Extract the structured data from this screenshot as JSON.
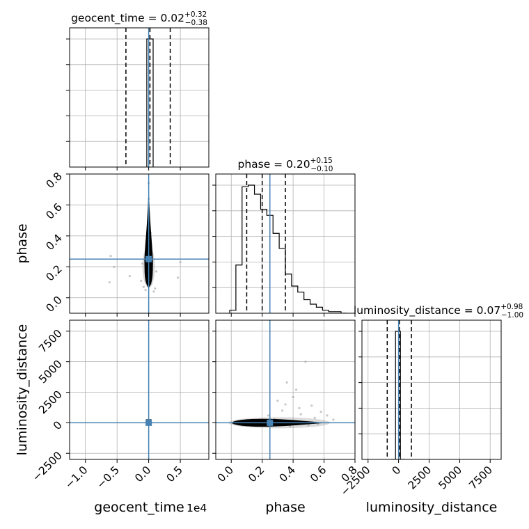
{
  "colors": {
    "truth": "#4682b4",
    "grid": "#b0b0b0",
    "hist": "#000000",
    "scatter": "#999999",
    "density": "#000000"
  },
  "chart_data": {
    "type": "corner",
    "parameters": [
      "geocent_time",
      "phase",
      "luminosity_distance"
    ],
    "grid": true,
    "titles": [
      {
        "text": "geocent_time = 0.02",
        "sup": "+0.32",
        "sub": "−0.38"
      },
      {
        "text": "phase = 0.20",
        "sup": "+0.15",
        "sub": "−0.10"
      },
      {
        "text": "luminosity_distance = 0.07",
        "sup": "+0.98",
        "sub": "−1.00"
      }
    ],
    "axis_labels": {
      "x": [
        "geocent_time",
        "phase",
        "luminosity_distance"
      ],
      "y": [
        "phase",
        "luminosity_distance"
      ]
    },
    "x_offset_text": "1e4",
    "ranges": {
      "geocent_time": [
        -1.25,
        0.95
      ],
      "phase": [
        -0.1,
        0.8
      ],
      "luminosity_distance": [
        -3000,
        8400
      ]
    },
    "ticks": {
      "geocent_time": {
        "values": [
          -1.0,
          -0.5,
          0.0,
          0.5
        ],
        "labels": [
          "−1.0",
          "−0.5",
          "0.0",
          "0.5"
        ]
      },
      "phase": {
        "values": [
          0.0,
          0.2,
          0.4,
          0.6,
          0.8
        ],
        "labels": [
          "0.0",
          "0.2",
          "0.4",
          "0.6",
          "0.8"
        ]
      },
      "luminosity_distance": {
        "values": [
          -2500,
          0,
          2500,
          5000,
          7500
        ],
        "labels": [
          "−2500",
          "0",
          "2500",
          "5000",
          "7500"
        ]
      }
    },
    "truths": {
      "geocent_time": 0.0,
      "phase": 0.25,
      "luminosity_distance": 0.0
    },
    "quantiles": {
      "geocent_time": [
        -0.36,
        0.02,
        0.34
      ],
      "phase": [
        0.1,
        0.2,
        0.35
      ],
      "luminosity_distance": [
        -930,
        70,
        1050
      ]
    },
    "histograms": {
      "geocent_time": {
        "edges": [
          -0.03,
          0.02,
          0.07
        ],
        "counts": [
          1.0,
          1.0
        ]
      },
      "phase": {
        "edges": [
          -0.01,
          0.03,
          0.07,
          0.11,
          0.15,
          0.19,
          0.23,
          0.27,
          0.31,
          0.35,
          0.39,
          0.43,
          0.47,
          0.51,
          0.55,
          0.59,
          0.63,
          0.67,
          0.71,
          0.75
        ],
        "counts": [
          0.02,
          0.32,
          0.84,
          0.85,
          0.79,
          0.69,
          0.65,
          0.53,
          0.43,
          0.26,
          0.18,
          0.14,
          0.09,
          0.06,
          0.04,
          0.02,
          0.01,
          0.01,
          0.0
        ]
      },
      "luminosity_distance": {
        "edges": [
          -600,
          -250,
          150,
          550
        ],
        "counts": [
          0.0,
          1.0,
          0.0
        ]
      }
    },
    "scatter_points": {
      "time_phase": [
        [
          0.0,
          0.74
        ],
        [
          0.0,
          0.64
        ],
        [
          -0.02,
          0.43
        ],
        [
          0.03,
          0.42
        ],
        [
          -0.01,
          0.37
        ],
        [
          0.02,
          0.33
        ],
        [
          -0.6,
          0.27
        ],
        [
          0.5,
          0.23
        ],
        [
          -0.55,
          0.2
        ],
        [
          -0.3,
          0.14
        ],
        [
          0.46,
          0.13
        ],
        [
          -0.62,
          0.1
        ],
        [
          0.1,
          0.06
        ],
        [
          -0.08,
          0.07
        ],
        [
          0.08,
          0.04
        ],
        [
          -0.05,
          0.05
        ],
        [
          0.04,
          0.09
        ],
        [
          -0.12,
          0.11
        ],
        [
          0.12,
          0.17
        ],
        [
          -0.1,
          0.22
        ]
      ],
      "phase_dist": [
        [
          0.48,
          5000
        ],
        [
          0.36,
          3300
        ],
        [
          0.42,
          2700
        ],
        [
          0.3,
          1800
        ],
        [
          0.52,
          1400
        ],
        [
          0.58,
          900
        ],
        [
          0.62,
          600
        ],
        [
          0.33,
          1000
        ],
        [
          0.44,
          1200
        ],
        [
          0.54,
          400
        ],
        [
          0.24,
          600
        ],
        [
          0.66,
          250
        ],
        [
          0.38,
          -300
        ],
        [
          0.5,
          -200
        ],
        [
          0.07,
          -200
        ],
        [
          0.45,
          700
        ],
        [
          0.56,
          -100
        ],
        [
          0.28,
          300
        ],
        [
          0.4,
          2100
        ],
        [
          0.35,
          1500
        ]
      ]
    }
  }
}
